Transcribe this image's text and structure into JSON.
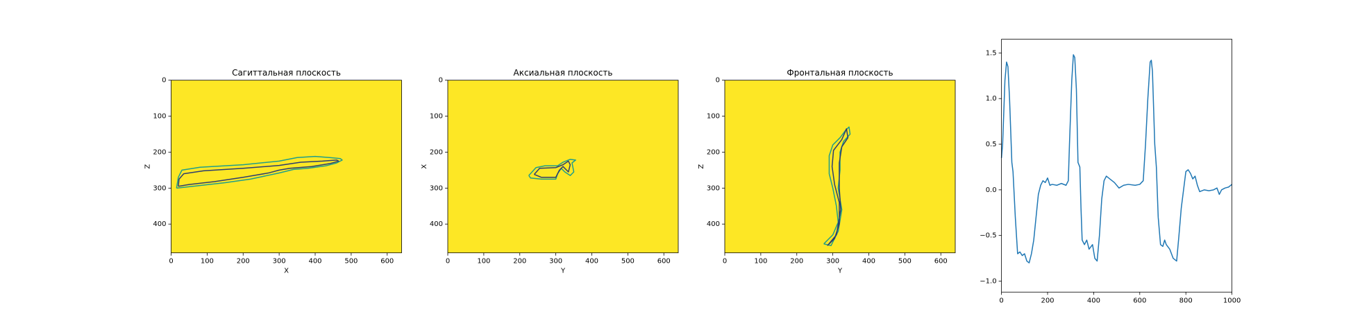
{
  "chart_data": [
    {
      "type": "image",
      "title": "Сагиттальная плоскость",
      "x_label": "X",
      "y_label": "Z",
      "background": "#fde725",
      "xlim": [
        0,
        640
      ],
      "ylim": [
        480,
        0
      ],
      "xticks": [
        0,
        100,
        200,
        300,
        400,
        500,
        600
      ],
      "yticks": [
        0,
        100,
        200,
        300,
        400
      ],
      "series": [
        {
          "color": "#1f9e89",
          "x": [
            15,
            20,
            30,
            80,
            200,
            300,
            350,
            400,
            440,
            470,
            475,
            460,
            430,
            380,
            340,
            300,
            220,
            150,
            60,
            15
          ],
          "values": [
            300,
            270,
            250,
            242,
            235,
            225,
            215,
            212,
            215,
            218,
            222,
            230,
            238,
            245,
            248,
            258,
            275,
            285,
            295,
            300
          ]
        },
        {
          "color": "#2c3d6e",
          "x": [
            20,
            22,
            35,
            90,
            200,
            300,
            360,
            420,
            460,
            465,
            440,
            390,
            330,
            300,
            270,
            200,
            120,
            50,
            20
          ],
          "values": [
            295,
            275,
            260,
            252,
            245,
            237,
            228,
            225,
            222,
            225,
            232,
            240,
            245,
            250,
            258,
            270,
            282,
            290,
            295
          ]
        }
      ]
    },
    {
      "type": "image",
      "title": "Аксиальная плоскость",
      "x_label": "Y",
      "y_label": "X",
      "background": "#fde725",
      "xlim": [
        0,
        640
      ],
      "ylim": [
        480,
        0
      ],
      "xticks": [
        0,
        100,
        200,
        300,
        400,
        500,
        600
      ],
      "yticks": [
        0,
        100,
        200,
        300,
        400
      ],
      "series": [
        {
          "color": "#1f9e89",
          "x": [
            225,
            245,
            270,
            305,
            320,
            340,
            355,
            345,
            350,
            340,
            325,
            315,
            305,
            300,
            260,
            230,
            225
          ],
          "values": [
            265,
            243,
            238,
            238,
            228,
            220,
            222,
            230,
            255,
            265,
            255,
            245,
            260,
            275,
            275,
            272,
            265
          ]
        },
        {
          "color": "#2c3d6e",
          "x": [
            240,
            255,
            300,
            320,
            335,
            340,
            335,
            320,
            310,
            300,
            260,
            240
          ],
          "values": [
            262,
            245,
            243,
            235,
            225,
            235,
            255,
            240,
            250,
            270,
            270,
            262
          ]
        }
      ]
    },
    {
      "type": "image",
      "title": "Фронтальная плоскость",
      "x_label": "Y",
      "y_label": "Z",
      "background": "#fde725",
      "xlim": [
        0,
        640
      ],
      "ylim": [
        480,
        0
      ],
      "xticks": [
        0,
        100,
        200,
        300,
        400,
        500,
        600
      ],
      "yticks": [
        0,
        100,
        200,
        300,
        400
      ],
      "series": [
        {
          "color": "#1f9e89",
          "x": [
            275,
            300,
            315,
            310,
            300,
            290,
            290,
            300,
            320,
            335,
            345,
            348,
            330,
            320,
            320,
            315,
            325,
            315,
            295,
            275
          ],
          "values": [
            455,
            430,
            395,
            350,
            300,
            260,
            210,
            180,
            160,
            140,
            130,
            150,
            170,
            200,
            250,
            300,
            360,
            420,
            460,
            455
          ]
        },
        {
          "color": "#2c3d6e",
          "x": [
            285,
            305,
            318,
            318,
            305,
            298,
            302,
            325,
            338,
            342,
            325,
            318,
            318,
            322,
            310,
            285
          ],
          "values": [
            460,
            440,
            400,
            340,
            290,
            240,
            195,
            165,
            135,
            160,
            185,
            230,
            300,
            360,
            430,
            460
          ]
        }
      ]
    },
    {
      "type": "line",
      "xlim": [
        0,
        1000
      ],
      "ylim": [
        -1.12,
        1.65
      ],
      "xticks": [
        0,
        200,
        400,
        600,
        800,
        1000
      ],
      "yticks": [
        {
          "value": -1,
          "label": "−1.0"
        },
        {
          "value": -0.5,
          "label": "−0.5"
        },
        {
          "value": 0,
          "label": "0.0"
        },
        0.5,
        {
          "value": 1,
          "label": "1.0"
        },
        1.5
      ],
      "color": "#1f77b4",
      "x": [
        0,
        5,
        15,
        22,
        28,
        35,
        45,
        50,
        60,
        70,
        80,
        90,
        100,
        110,
        120,
        130,
        140,
        150,
        160,
        170,
        180,
        190,
        200,
        210,
        220,
        240,
        260,
        280,
        290,
        295,
        305,
        312,
        318,
        325,
        332,
        340,
        345,
        350,
        360,
        370,
        380,
        395,
        405,
        415,
        425,
        435,
        445,
        455,
        470,
        490,
        510,
        530,
        550,
        580,
        600,
        615,
        625,
        635,
        645,
        650,
        655,
        665,
        672,
        680,
        690,
        700,
        708,
        715,
        730,
        745,
        760,
        770,
        780,
        790,
        800,
        810,
        820,
        830,
        840,
        850,
        860,
        880,
        900,
        920,
        935,
        945,
        955,
        970,
        985,
        1000
      ],
      "values": [
        0.35,
        0.5,
        1.2,
        1.4,
        1.35,
        1.0,
        0.3,
        0.2,
        -0.3,
        -0.7,
        -0.68,
        -0.72,
        -0.7,
        -0.78,
        -0.8,
        -0.7,
        -0.55,
        -0.3,
        -0.05,
        0.05,
        0.1,
        0.08,
        0.13,
        0.05,
        0.06,
        0.05,
        0.07,
        0.05,
        0.1,
        0.5,
        1.2,
        1.48,
        1.45,
        1.1,
        0.3,
        0.25,
        -0.2,
        -0.55,
        -0.6,
        -0.55,
        -0.65,
        -0.6,
        -0.75,
        -0.78,
        -0.5,
        -0.1,
        0.1,
        0.15,
        0.12,
        0.08,
        0.02,
        0.05,
        0.06,
        0.05,
        0.06,
        0.1,
        0.5,
        1.0,
        1.4,
        1.42,
        1.3,
        0.5,
        0.25,
        -0.3,
        -0.6,
        -0.62,
        -0.55,
        -0.6,
        -0.65,
        -0.75,
        -0.78,
        -0.5,
        -0.2,
        0.0,
        0.2,
        0.22,
        0.18,
        0.12,
        0.15,
        0.05,
        -0.02,
        0.0,
        -0.01,
        0.0,
        0.02,
        -0.05,
        0.0,
        0.02,
        0.03,
        0.06
      ]
    }
  ]
}
